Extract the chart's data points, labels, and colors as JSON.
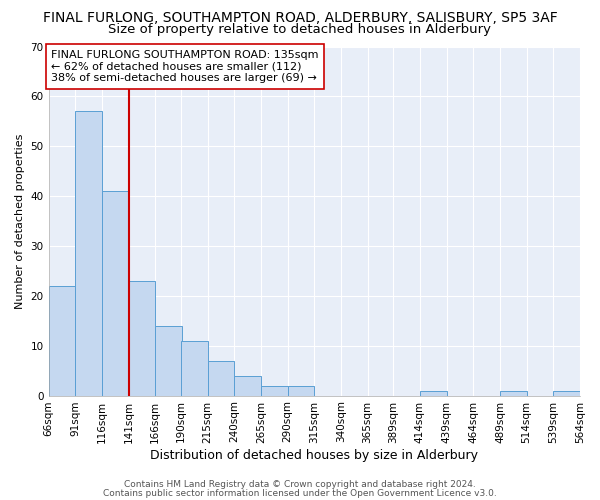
{
  "title1": "FINAL FURLONG, SOUTHAMPTON ROAD, ALDERBURY, SALISBURY, SP5 3AF",
  "title2": "Size of property relative to detached houses in Alderbury",
  "xlabel": "Distribution of detached houses by size in Alderbury",
  "ylabel": "Number of detached properties",
  "bar_left_edges": [
    66,
    91,
    116,
    141,
    166,
    190,
    215,
    240,
    265,
    290,
    315,
    340,
    365,
    389,
    414,
    439,
    464,
    489,
    514,
    539
  ],
  "bar_widths": [
    25,
    25,
    25,
    25,
    25,
    25,
    25,
    25,
    25,
    25,
    25,
    25,
    25,
    25,
    25,
    25,
    25,
    25,
    25,
    25
  ],
  "bar_heights": [
    22,
    57,
    41,
    23,
    14,
    11,
    7,
    4,
    2,
    2,
    0,
    0,
    0,
    0,
    1,
    0,
    0,
    1,
    0,
    1
  ],
  "bar_color": "#c5d8f0",
  "bar_edge_color": "#5a9fd4",
  "bar_edge_width": 0.7,
  "red_line_x": 141,
  "red_line_color": "#cc0000",
  "ylim": [
    0,
    70
  ],
  "yticks": [
    0,
    10,
    20,
    30,
    40,
    50,
    60,
    70
  ],
  "xtick_labels": [
    "66sqm",
    "91sqm",
    "116sqm",
    "141sqm",
    "166sqm",
    "190sqm",
    "215sqm",
    "240sqm",
    "265sqm",
    "290sqm",
    "315sqm",
    "340sqm",
    "365sqm",
    "389sqm",
    "414sqm",
    "439sqm",
    "464sqm",
    "489sqm",
    "514sqm",
    "539sqm",
    "564sqm"
  ],
  "annotation_line1": "FINAL FURLONG SOUTHAMPTON ROAD: 135sqm",
  "annotation_line2": "← 62% of detached houses are smaller (112)",
  "annotation_line3": "38% of semi-detached houses are larger (69) →",
  "annotation_box_color": "white",
  "annotation_box_edge_color": "#cc0000",
  "annotation_box_edge_width": 1.2,
  "footer1": "Contains HM Land Registry data © Crown copyright and database right 2024.",
  "footer2": "Contains public sector information licensed under the Open Government Licence v3.0.",
  "bg_color": "#e8eef8",
  "grid_color": "#ffffff",
  "title1_fontsize": 10,
  "title2_fontsize": 9.5,
  "xlabel_fontsize": 9,
  "ylabel_fontsize": 8,
  "tick_fontsize": 7.5,
  "annotation_fontsize": 8,
  "footer_fontsize": 6.5
}
